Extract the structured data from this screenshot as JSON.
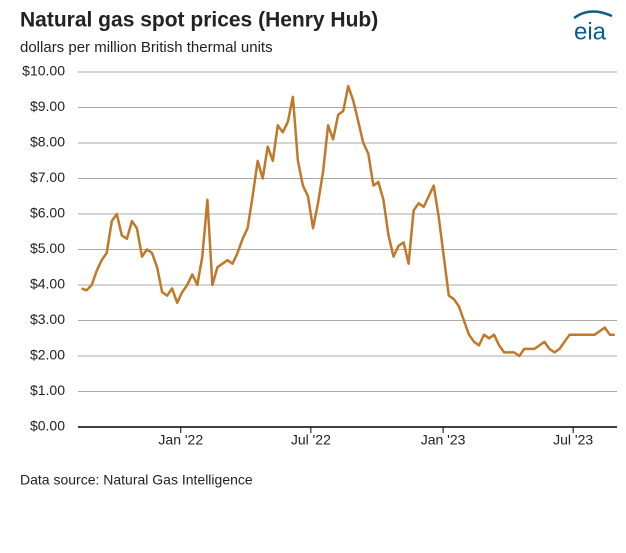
{
  "chart_data": {
    "type": "line",
    "title": "Natural gas spot prices (Henry Hub)",
    "subtitle": "dollars per million British thermal units",
    "source": "Data source: Natural Gas Intelligence",
    "logo": "eia",
    "x": [
      "2021-08-16",
      "2021-08-23",
      "2021-08-30",
      "2021-09-06",
      "2021-09-13",
      "2021-09-20",
      "2021-09-27",
      "2021-10-04",
      "2021-10-11",
      "2021-10-18",
      "2021-10-25",
      "2021-11-01",
      "2021-11-08",
      "2021-11-15",
      "2021-11-22",
      "2021-11-29",
      "2021-12-06",
      "2021-12-13",
      "2021-12-20",
      "2021-12-27",
      "2022-01-03",
      "2022-01-10",
      "2022-01-17",
      "2022-01-24",
      "2022-01-31",
      "2022-02-07",
      "2022-02-14",
      "2022-02-21",
      "2022-02-28",
      "2022-03-07",
      "2022-03-14",
      "2022-03-21",
      "2022-03-28",
      "2022-04-04",
      "2022-04-11",
      "2022-04-18",
      "2022-04-25",
      "2022-05-02",
      "2022-05-09",
      "2022-05-16",
      "2022-05-23",
      "2022-05-30",
      "2022-06-06",
      "2022-06-13",
      "2022-06-20",
      "2022-06-27",
      "2022-07-04",
      "2022-07-11",
      "2022-07-18",
      "2022-07-25",
      "2022-08-01",
      "2022-08-08",
      "2022-08-15",
      "2022-08-22",
      "2022-08-29",
      "2022-09-05",
      "2022-09-12",
      "2022-09-19",
      "2022-09-26",
      "2022-10-03",
      "2022-10-10",
      "2022-10-17",
      "2022-10-24",
      "2022-10-31",
      "2022-11-07",
      "2022-11-14",
      "2022-11-21",
      "2022-11-28",
      "2022-12-05",
      "2022-12-12",
      "2022-12-19",
      "2022-12-26",
      "2023-01-02",
      "2023-01-09",
      "2023-01-16",
      "2023-01-23",
      "2023-01-30",
      "2023-02-06",
      "2023-02-13",
      "2023-02-20",
      "2023-02-27",
      "2023-03-06",
      "2023-03-13",
      "2023-03-20",
      "2023-03-27",
      "2023-04-03",
      "2023-04-10",
      "2023-04-17",
      "2023-04-24",
      "2023-05-01",
      "2023-05-08",
      "2023-05-15",
      "2023-05-22",
      "2023-05-29",
      "2023-06-05",
      "2023-06-12",
      "2023-06-19",
      "2023-06-26",
      "2023-07-03",
      "2023-07-10",
      "2023-07-17",
      "2023-07-24",
      "2023-07-31",
      "2023-08-07",
      "2023-08-14",
      "2023-08-21",
      "2023-08-28"
    ],
    "series": [
      {
        "name": "Henry Hub",
        "color": "#c0792a",
        "values": [
          3.9,
          3.85,
          4.0,
          4.4,
          4.7,
          4.9,
          5.8,
          6.0,
          5.4,
          5.3,
          5.8,
          5.6,
          4.8,
          5.0,
          4.9,
          4.5,
          3.8,
          3.7,
          3.9,
          3.5,
          3.8,
          4.0,
          4.3,
          4.0,
          4.8,
          6.4,
          4.0,
          4.5,
          4.6,
          4.7,
          4.6,
          4.9,
          5.3,
          5.6,
          6.5,
          7.5,
          7.0,
          7.9,
          7.5,
          8.5,
          8.3,
          8.6,
          9.3,
          7.5,
          6.8,
          6.5,
          5.6,
          6.3,
          7.2,
          8.5,
          8.1,
          8.8,
          8.9,
          9.6,
          9.2,
          8.6,
          8.0,
          7.7,
          6.8,
          6.9,
          6.4,
          5.4,
          4.8,
          5.1,
          5.2,
          4.6,
          6.1,
          6.3,
          6.2,
          6.5,
          6.8,
          5.9,
          4.8,
          3.7,
          3.6,
          3.4,
          3.0,
          2.6,
          2.4,
          2.3,
          2.6,
          2.5,
          2.6,
          2.3,
          2.1,
          2.1,
          2.1,
          2.0,
          2.2,
          2.2,
          2.2,
          2.3,
          2.4,
          2.2,
          2.1,
          2.2,
          2.4,
          2.6,
          2.6,
          2.6,
          2.6,
          2.6,
          2.6,
          2.7,
          2.8,
          2.6,
          2.6
        ]
      }
    ],
    "xlim": [
      "2021-08-11",
      "2023-08-31"
    ],
    "xticks": [
      {
        "value": "2022-01-01",
        "label": "Jan '22"
      },
      {
        "value": "2022-07-01",
        "label": "Jul '22"
      },
      {
        "value": "2023-01-01",
        "label": "Jan '23"
      },
      {
        "value": "2023-07-01",
        "label": "Jul '23"
      }
    ],
    "ylim": [
      0,
      10
    ],
    "yticks": [
      {
        "value": 0,
        "label": "$0.00"
      },
      {
        "value": 1,
        "label": "$1.00"
      },
      {
        "value": 2,
        "label": "$2.00"
      },
      {
        "value": 3,
        "label": "$3.00"
      },
      {
        "value": 4,
        "label": "$4.00"
      },
      {
        "value": 5,
        "label": "$5.00"
      },
      {
        "value": 6,
        "label": "$6.00"
      },
      {
        "value": 7,
        "label": "$7.00"
      },
      {
        "value": 8,
        "label": "$8.00"
      },
      {
        "value": 9,
        "label": "$9.00"
      },
      {
        "value": 10,
        "label": "$10.00"
      }
    ],
    "grid": true
  }
}
